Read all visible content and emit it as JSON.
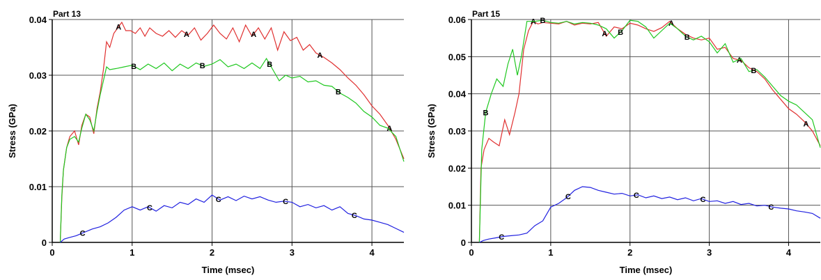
{
  "chart_data": [
    {
      "type": "line",
      "title": "Part 13",
      "xlabel": "Time (msec)",
      "ylabel": "Stress (GPa)",
      "xlim": [
        0,
        4.4
      ],
      "ylim": [
        0,
        0.04
      ],
      "xticks": [
        0,
        1,
        2,
        3,
        4
      ],
      "xtick_labels": [
        "0",
        "1",
        "2",
        "3",
        "4"
      ],
      "yticks": [
        0,
        0.01,
        0.02,
        0.03,
        0.04
      ],
      "ytick_labels": [
        "0",
        "0.01",
        "0.02",
        "0.03",
        "0.04"
      ],
      "grid": true,
      "series": [
        {
          "color": "#e03030",
          "label": "A",
          "x": [
            0.1,
            0.12,
            0.14,
            0.18,
            0.22,
            0.28,
            0.33,
            0.37,
            0.42,
            0.47,
            0.52,
            0.56,
            0.6,
            0.64,
            0.68,
            0.72,
            0.77,
            0.82,
            0.87,
            0.92,
            0.98,
            1.04,
            1.1,
            1.16,
            1.22,
            1.3,
            1.38,
            1.46,
            1.54,
            1.62,
            1.7,
            1.78,
            1.86,
            1.94,
            2.02,
            2.1,
            2.18,
            2.26,
            2.34,
            2.42,
            2.5,
            2.58,
            2.66,
            2.74,
            2.82,
            2.9,
            2.98,
            3.06,
            3.14,
            3.22,
            3.3,
            3.4,
            3.5,
            3.6,
            3.7,
            3.8,
            3.9,
            4.0,
            4.1,
            4.2,
            4.3,
            4.4
          ],
          "y": [
            0.0,
            0.008,
            0.013,
            0.017,
            0.019,
            0.02,
            0.0175,
            0.021,
            0.023,
            0.0225,
            0.0195,
            0.024,
            0.027,
            0.031,
            0.036,
            0.035,
            0.0375,
            0.0385,
            0.0395,
            0.038,
            0.038,
            0.0375,
            0.0385,
            0.037,
            0.0385,
            0.0375,
            0.037,
            0.038,
            0.0368,
            0.038,
            0.0372,
            0.0385,
            0.0363,
            0.0375,
            0.039,
            0.0375,
            0.0365,
            0.0385,
            0.036,
            0.039,
            0.037,
            0.0385,
            0.0365,
            0.0385,
            0.0345,
            0.0378,
            0.0362,
            0.0368,
            0.0345,
            0.0355,
            0.034,
            0.0332,
            0.0322,
            0.031,
            0.0295,
            0.0282,
            0.0265,
            0.0245,
            0.023,
            0.021,
            0.0185,
            0.015
          ],
          "marker_x": [
            0.83,
            1.68,
            2.52,
            3.35,
            4.22
          ]
        },
        {
          "color": "#20c820",
          "label": "B",
          "x": [
            0.1,
            0.12,
            0.14,
            0.18,
            0.22,
            0.28,
            0.33,
            0.37,
            0.42,
            0.47,
            0.52,
            0.56,
            0.6,
            0.64,
            0.68,
            0.72,
            0.8,
            0.9,
            1.0,
            1.1,
            1.2,
            1.3,
            1.4,
            1.5,
            1.6,
            1.7,
            1.8,
            1.9,
            2.0,
            2.1,
            2.2,
            2.3,
            2.4,
            2.5,
            2.6,
            2.68,
            2.76,
            2.84,
            2.92,
            3.0,
            3.1,
            3.2,
            3.3,
            3.4,
            3.5,
            3.6,
            3.7,
            3.8,
            3.9,
            4.0,
            4.1,
            4.2,
            4.3,
            4.4
          ],
          "y": [
            0.0,
            0.0085,
            0.013,
            0.017,
            0.0185,
            0.019,
            0.018,
            0.0205,
            0.023,
            0.022,
            0.02,
            0.0235,
            0.0265,
            0.029,
            0.0315,
            0.031,
            0.0312,
            0.0315,
            0.0318,
            0.031,
            0.032,
            0.0312,
            0.0322,
            0.0308,
            0.032,
            0.0312,
            0.0322,
            0.0316,
            0.032,
            0.0328,
            0.0315,
            0.032,
            0.0312,
            0.0322,
            0.0312,
            0.033,
            0.031,
            0.029,
            0.03,
            0.0295,
            0.0298,
            0.0288,
            0.029,
            0.0282,
            0.028,
            0.0268,
            0.026,
            0.025,
            0.0235,
            0.0225,
            0.021,
            0.0205,
            0.019,
            0.0145
          ],
          "marker_x": [
            1.02,
            1.88,
            2.72,
            3.58
          ]
        },
        {
          "color": "#2020e0",
          "label": "C",
          "x": [
            0.1,
            0.15,
            0.22,
            0.3,
            0.4,
            0.5,
            0.6,
            0.7,
            0.8,
            0.9,
            1.0,
            1.1,
            1.2,
            1.3,
            1.4,
            1.5,
            1.6,
            1.7,
            1.8,
            1.9,
            2.0,
            2.1,
            2.2,
            2.3,
            2.4,
            2.5,
            2.6,
            2.7,
            2.8,
            2.9,
            3.0,
            3.1,
            3.2,
            3.3,
            3.4,
            3.5,
            3.6,
            3.7,
            3.8,
            3.9,
            4.0,
            4.1,
            4.2,
            4.3,
            4.4
          ],
          "y": [
            0.0,
            0.0006,
            0.0009,
            0.0012,
            0.0018,
            0.0024,
            0.0028,
            0.0035,
            0.0045,
            0.0058,
            0.0064,
            0.0058,
            0.0064,
            0.0056,
            0.0066,
            0.0062,
            0.0072,
            0.0068,
            0.0078,
            0.0072,
            0.0085,
            0.0076,
            0.0082,
            0.0075,
            0.0083,
            0.0078,
            0.0082,
            0.0076,
            0.0072,
            0.0074,
            0.0072,
            0.0064,
            0.0068,
            0.0062,
            0.0066,
            0.0058,
            0.0064,
            0.0052,
            0.0048,
            0.0042,
            0.004,
            0.0036,
            0.0032,
            0.0025,
            0.0018
          ],
          "marker_x": [
            0.38,
            1.22,
            2.08,
            2.92,
            3.78
          ]
        }
      ]
    },
    {
      "type": "line",
      "title": "Part 15",
      "xlabel": "Time (msec)",
      "ylabel": "Stress (GPa)",
      "xlim": [
        0,
        4.4
      ],
      "ylim": [
        0,
        0.06
      ],
      "xticks": [
        0,
        1,
        2,
        3,
        4
      ],
      "xtick_labels": [
        "0",
        "1",
        "2",
        "3",
        "4"
      ],
      "yticks": [
        0,
        0.01,
        0.02,
        0.03,
        0.04,
        0.05,
        0.06
      ],
      "ytick_labels": [
        "0",
        "0.01",
        "0.02",
        "0.03",
        "0.04",
        "0.05",
        "0.06"
      ],
      "grid": true,
      "series": [
        {
          "color": "#e03030",
          "label": "A",
          "x": [
            0.1,
            0.12,
            0.16,
            0.22,
            0.28,
            0.35,
            0.42,
            0.48,
            0.55,
            0.6,
            0.66,
            0.72,
            0.78,
            0.84,
            0.9,
            1.0,
            1.1,
            1.2,
            1.3,
            1.4,
            1.5,
            1.6,
            1.7,
            1.8,
            1.9,
            2.0,
            2.1,
            2.2,
            2.3,
            2.4,
            2.5,
            2.6,
            2.7,
            2.8,
            2.9,
            3.0,
            3.1,
            3.2,
            3.3,
            3.4,
            3.5,
            3.6,
            3.7,
            3.8,
            3.9,
            4.0,
            4.1,
            4.2,
            4.3,
            4.4
          ],
          "y": [
            0.0,
            0.02,
            0.025,
            0.028,
            0.027,
            0.026,
            0.033,
            0.029,
            0.035,
            0.04,
            0.052,
            0.057,
            0.0595,
            0.0588,
            0.0592,
            0.059,
            0.0588,
            0.0595,
            0.0585,
            0.059,
            0.0588,
            0.0592,
            0.0555,
            0.058,
            0.0575,
            0.059,
            0.0585,
            0.0575,
            0.0568,
            0.0578,
            0.0595,
            0.0575,
            0.056,
            0.055,
            0.0545,
            0.055,
            0.052,
            0.0525,
            0.0495,
            0.049,
            0.047,
            0.046,
            0.044,
            0.041,
            0.0385,
            0.036,
            0.0345,
            0.0325,
            0.03,
            0.026
          ],
          "marker_x": [
            0.78,
            1.68,
            2.52,
            3.38,
            4.22
          ]
        },
        {
          "color": "#20c820",
          "label": "B",
          "x": [
            0.1,
            0.13,
            0.18,
            0.25,
            0.32,
            0.4,
            0.46,
            0.52,
            0.58,
            0.63,
            0.7,
            0.8,
            0.9,
            1.0,
            1.1,
            1.2,
            1.3,
            1.4,
            1.5,
            1.6,
            1.7,
            1.8,
            1.9,
            2.0,
            2.1,
            2.2,
            2.3,
            2.4,
            2.5,
            2.6,
            2.7,
            2.8,
            2.9,
            3.0,
            3.1,
            3.2,
            3.3,
            3.4,
            3.5,
            3.6,
            3.7,
            3.8,
            3.9,
            4.0,
            4.1,
            4.2,
            4.3,
            4.4
          ],
          "y": [
            0.0,
            0.025,
            0.035,
            0.04,
            0.044,
            0.042,
            0.048,
            0.052,
            0.045,
            0.05,
            0.0595,
            0.0595,
            0.0598,
            0.0592,
            0.059,
            0.0595,
            0.0588,
            0.0592,
            0.059,
            0.0585,
            0.0575,
            0.055,
            0.057,
            0.0598,
            0.0595,
            0.058,
            0.055,
            0.057,
            0.059,
            0.0575,
            0.0555,
            0.0545,
            0.0555,
            0.054,
            0.051,
            0.0535,
            0.0485,
            0.0495,
            0.046,
            0.0465,
            0.0445,
            0.042,
            0.0395,
            0.038,
            0.037,
            0.035,
            0.033,
            0.0255
          ],
          "marker_x": [
            0.18,
            0.9,
            1.88,
            2.72,
            3.56
          ]
        },
        {
          "color": "#2020e0",
          "label": "C",
          "x": [
            0.1,
            0.15,
            0.22,
            0.3,
            0.4,
            0.5,
            0.6,
            0.7,
            0.8,
            0.9,
            1.0,
            1.1,
            1.2,
            1.3,
            1.4,
            1.5,
            1.6,
            1.7,
            1.8,
            1.9,
            2.0,
            2.1,
            2.2,
            2.3,
            2.4,
            2.5,
            2.6,
            2.7,
            2.8,
            2.9,
            3.0,
            3.1,
            3.2,
            3.3,
            3.4,
            3.5,
            3.6,
            3.7,
            3.8,
            3.9,
            4.0,
            4.1,
            4.2,
            4.3,
            4.4
          ],
          "y": [
            0.0,
            0.0005,
            0.0009,
            0.0012,
            0.0016,
            0.0018,
            0.002,
            0.0025,
            0.0045,
            0.0058,
            0.0095,
            0.0105,
            0.012,
            0.014,
            0.015,
            0.0148,
            0.014,
            0.0135,
            0.013,
            0.0132,
            0.0125,
            0.0128,
            0.012,
            0.0125,
            0.0118,
            0.0122,
            0.0115,
            0.012,
            0.0112,
            0.0118,
            0.011,
            0.0112,
            0.0105,
            0.011,
            0.0102,
            0.0105,
            0.0098,
            0.01,
            0.0095,
            0.0092,
            0.009,
            0.0085,
            0.0082,
            0.0078,
            0.0065
          ],
          "marker_x": [
            0.38,
            1.22,
            2.08,
            2.92,
            3.78
          ]
        }
      ]
    }
  ]
}
